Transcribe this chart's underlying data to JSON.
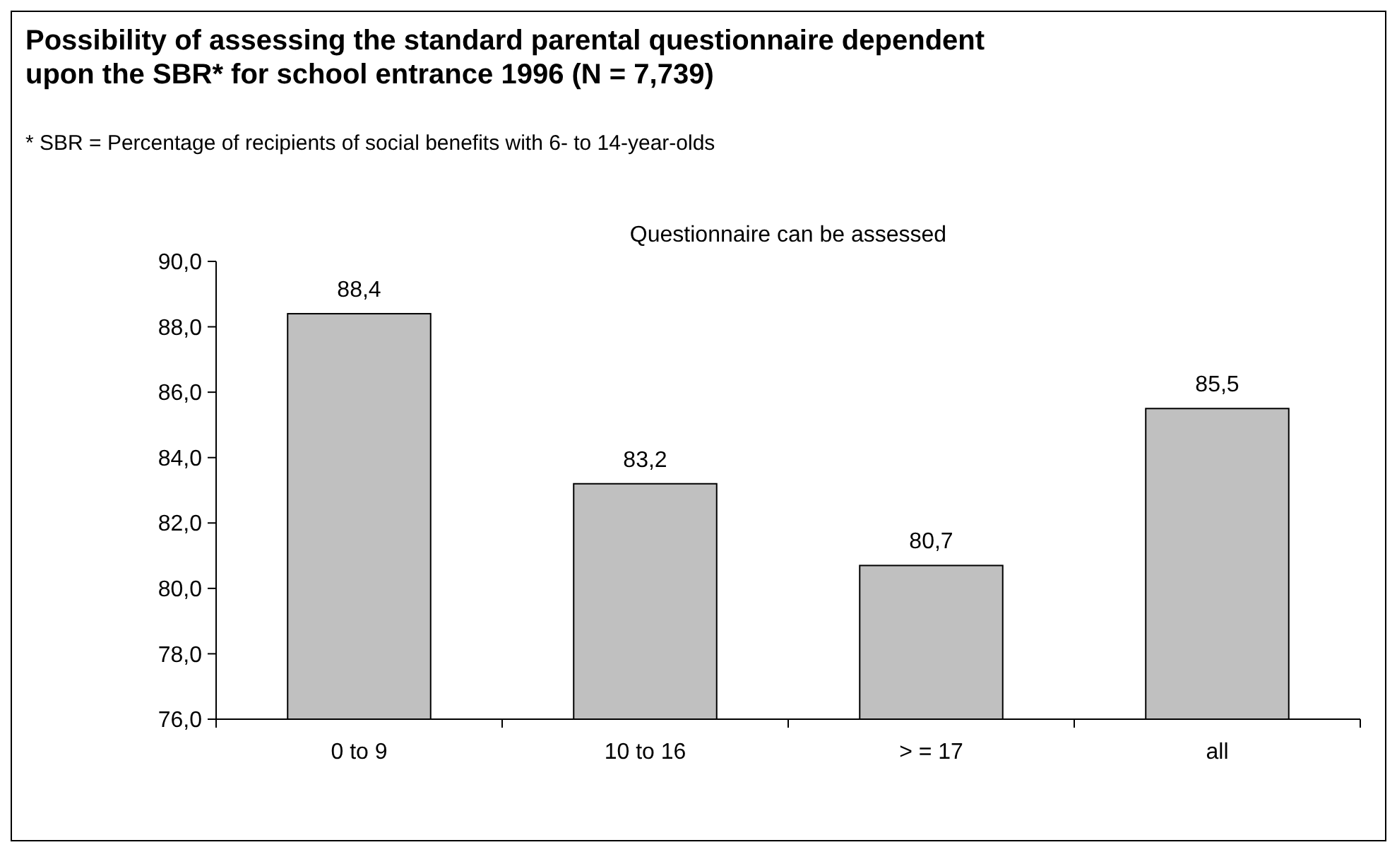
{
  "chart_data": {
    "type": "bar",
    "title": "Possibility of assessing the standard parental questionnaire dependent upon the SBR* for school entrance 1996 (N = 7,739)",
    "subtitle": "Questionnaire can be assessed",
    "annotations": [
      "* SBR = Percentage of recipients of social benefits with 6- to 14-year-olds"
    ],
    "categories": [
      "0 to 9",
      "10 to 16",
      "> = 17",
      "all"
    ],
    "values": [
      88.4,
      83.2,
      80.7,
      85.5
    ],
    "value_labels": [
      "88,4",
      "83,2",
      "80,7",
      "85,5"
    ],
    "color": "#c0c0c0",
    "ylim": [
      76,
      90
    ],
    "yticks": [
      {
        "value": 76,
        "label": "76,0"
      },
      {
        "value": 78,
        "label": "78,0"
      },
      {
        "value": 80,
        "label": "80,0"
      },
      {
        "value": 82,
        "label": "82,0"
      },
      {
        "value": 84,
        "label": "84,0"
      },
      {
        "value": 86,
        "label": "86,0"
      },
      {
        "value": 88,
        "label": "88,0"
      },
      {
        "value": 90,
        "label": "90,0"
      }
    ]
  }
}
